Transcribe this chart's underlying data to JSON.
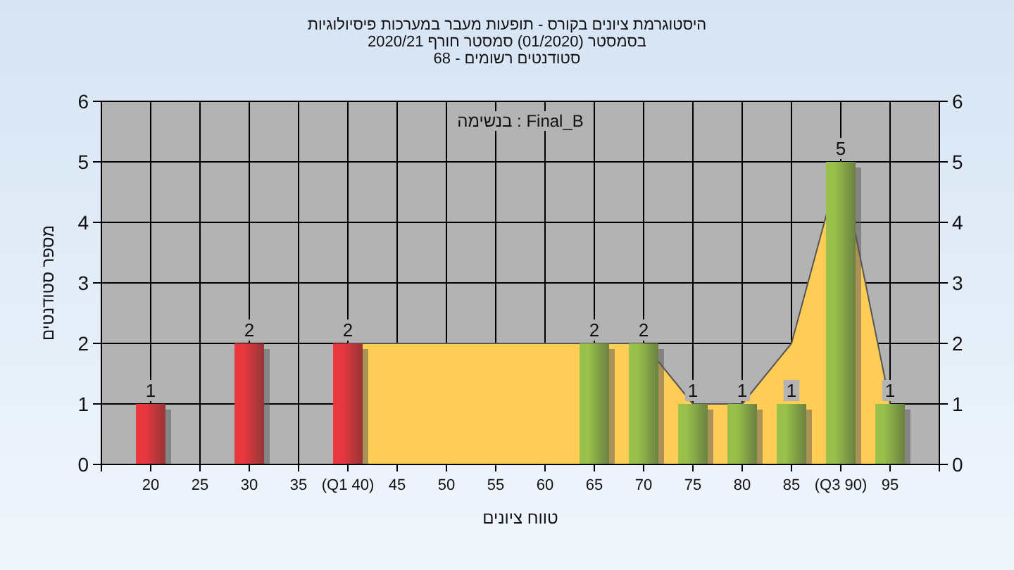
{
  "chart_data": {
    "type": "bar",
    "title": "היסטוגרמת ציונים בקורס - תופעות מעבר במערכות פיסיולוגיות",
    "subtitle": "בסמסטר (01/2020) סמסטר חורף 2020/21\nסטודנטים רשומים - 68",
    "xlabel": "טווח ציונים",
    "ylabel": "מספר סטודנטים",
    "annotations": [
      "Final_B : בנשימה"
    ],
    "series": [
      {
        "type": "area",
        "x": [
          40,
          65,
          70,
          75,
          80,
          85,
          90,
          95
        ],
        "values": [
          2,
          2,
          2,
          1,
          1,
          2,
          5,
          1
        ],
        "color": "#ffcc55"
      },
      {
        "type": "bar",
        "x": [
          20,
          30,
          40,
          65,
          70,
          75,
          80,
          85,
          90,
          95
        ],
        "values": [
          1,
          2,
          2,
          2,
          2,
          1,
          1,
          1,
          5,
          1
        ],
        "colors": [
          "#e8383d",
          "#e8383d",
          "#e8383d",
          "#98c04a",
          "#98c04a",
          "#98c04a",
          "#98c04a",
          "#98c04a",
          "#98c04a",
          "#98c04a"
        ],
        "value_labels": [
          "1",
          "2",
          "2",
          "2",
          "2",
          "1",
          "1",
          "1",
          "5",
          "1"
        ]
      }
    ],
    "xlim": [
      15,
      100
    ],
    "xticks": [
      {
        "value": 15,
        "label": null
      },
      20,
      25,
      30,
      35,
      {
        "value": 40,
        "label": "(Q1 40)"
      },
      45,
      50,
      55,
      60,
      65,
      70,
      75,
      80,
      85,
      {
        "value": 90,
        "label": "(Q3 90)"
      },
      95,
      {
        "value": 100,
        "label": null
      }
    ],
    "ylim": [
      0,
      6
    ],
    "yticks": [
      0,
      1,
      2,
      3,
      4,
      5,
      6
    ],
    "y2lim": [
      0,
      6
    ],
    "y2ticks": [
      0,
      1,
      2,
      3,
      4,
      5,
      6
    ],
    "grid": true
  }
}
